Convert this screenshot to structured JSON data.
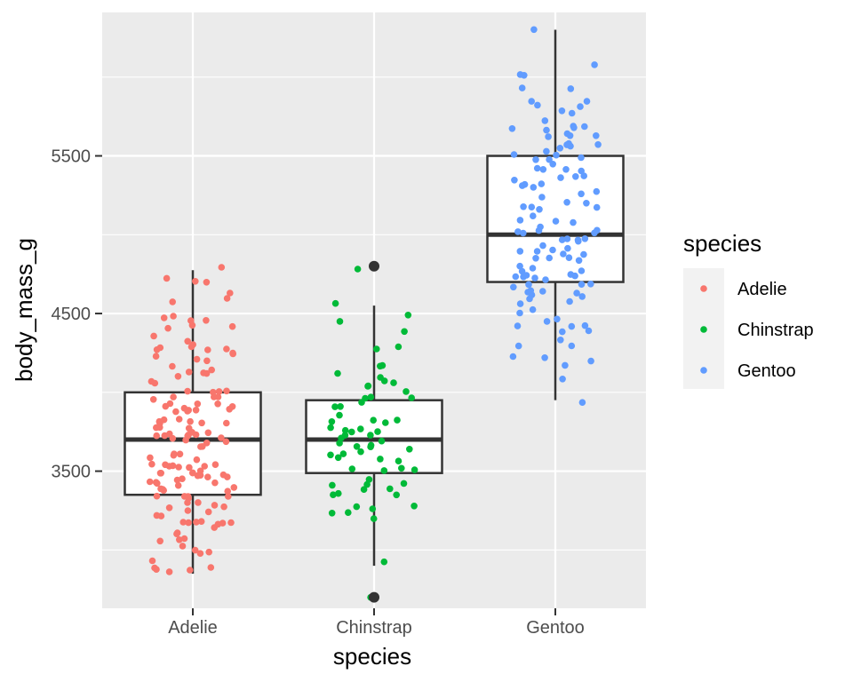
{
  "chart_data": {
    "type": "box",
    "title": "",
    "xlabel": "species",
    "ylabel": "body_mass_g",
    "categories": [
      "Adelie",
      "Chinstrap",
      "Gentoo"
    ],
    "y_ticks": [
      3500,
      4500,
      5500
    ],
    "y_tick_labels": [
      "3500",
      "4500",
      "5500"
    ],
    "ylim": [
      2700,
      6300
    ],
    "grid": true,
    "legend": {
      "title": "species",
      "position": "right",
      "entries": [
        "Adelie",
        "Chinstrap",
        "Gentoo"
      ]
    },
    "colors": {
      "Adelie": "#F8766D",
      "Chinstrap": "#00BA38",
      "Gentoo": "#619CFF"
    },
    "boxes": [
      {
        "category": "Adelie",
        "whisker_low": 2850,
        "q1": 3350,
        "median": 3700,
        "q3": 4000,
        "whisker_high": 4775,
        "outliers": []
      },
      {
        "category": "Chinstrap",
        "whisker_low": 2900,
        "q1": 3488,
        "median": 3700,
        "q3": 3950,
        "whisker_high": 4550,
        "outliers": [
          2700,
          4800
        ]
      },
      {
        "category": "Gentoo",
        "whisker_low": 3950,
        "q1": 4700,
        "median": 5000,
        "q3": 5500,
        "whisker_high": 6300,
        "outliers": []
      }
    ],
    "points": {
      "Adelie": [
        3750,
        3800,
        3250,
        3450,
        3650,
        3625,
        4675,
        3475,
        4250,
        3300,
        3700,
        3200,
        3800,
        4400,
        3700,
        3450,
        4500,
        3325,
        4200,
        3400,
        3600,
        3800,
        3950,
        3800,
        3800,
        3550,
        3200,
        3150,
        3950,
        3250,
        3900,
        3300,
        3900,
        3325,
        4150,
        3950,
        3550,
        3300,
        4650,
        3150,
        3900,
        3100,
        4400,
        3000,
        4600,
        3425,
        2975,
        3450,
        4150,
        3500,
        4300,
        3450,
        4050,
        2900,
        3700,
        3550,
        3800,
        2850,
        3750,
        3150,
        4400,
        3600,
        4050,
        2850,
        3950,
        3350,
        4100,
        3050,
        4450,
        3600,
        3900,
        3550,
        4150,
        3700,
        4250,
        3700,
        3900,
        3550,
        4000,
        3200,
        4700,
        3800,
        4200,
        3350,
        3550,
        3800,
        3500,
        3950,
        3600,
        3550,
        4300,
        3400,
        4450,
        3300,
        4300,
        3700,
        4350,
        2900,
        4100,
        3725,
        4725,
        3075,
        4250,
        2925,
        3550,
        3750,
        3900,
        3175,
        4775,
        3825,
        4600,
        3200,
        4275,
        3900,
        4075,
        2900,
        3775,
        3350,
        3325,
        3150,
        3500,
        3450,
        3875,
        3050,
        4000,
        3275,
        4300,
        3050,
        4000,
        3325,
        3500,
        3500,
        4475,
        3425,
        3900,
        3175,
        3975,
        3400,
        4250,
        3400,
        3475,
        3050,
        3725,
        3000,
        3650,
        4250,
        3475,
        3450,
        3750,
        3700,
        4000
      ],
      "Chinstrap": [
        3500,
        3900,
        3650,
        3525,
        3725,
        3950,
        3250,
        3750,
        4150,
        3700,
        3800,
        3775,
        3700,
        4050,
        3575,
        4050,
        3300,
        3700,
        3450,
        4400,
        3600,
        3400,
        2900,
        3800,
        3300,
        4150,
        3400,
        3800,
        3700,
        4550,
        3200,
        4300,
        3350,
        4100,
        3600,
        3900,
        3850,
        4800,
        2700,
        4500,
        3950,
        3650,
        3550,
        3500,
        3675,
        4450,
        3400,
        4300,
        3250,
        3675,
        3325,
        3950,
        3600,
        4050,
        3350,
        3450,
        3250,
        4050,
        3800,
        3525,
        3950,
        3650,
        3650,
        4000,
        3400,
        3775,
        4100,
        3775
      ],
      "Gentoo": [
        4500,
        5700,
        4450,
        5700,
        5400,
        4550,
        4800,
        5200,
        4400,
        5150,
        4650,
        5550,
        4650,
        5850,
        4200,
        5850,
        4150,
        6300,
        4800,
        5350,
        5700,
        5000,
        4400,
        5050,
        5000,
        5100,
        4100,
        5650,
        4600,
        5550,
        5250,
        4700,
        5050,
        6050,
        5150,
        5400,
        4950,
        5250,
        4350,
        5350,
        3950,
        5700,
        4300,
        4750,
        5550,
        4900,
        4200,
        5400,
        5100,
        5300,
        4850,
        5300,
        4400,
        5000,
        4900,
        5050,
        4300,
        5000,
        4450,
        5550,
        4200,
        5300,
        4400,
        5650,
        4700,
        5700,
        4650,
        5800,
        4700,
        5550,
        4750,
        5000,
        5100,
        5200,
        4700,
        5800,
        4600,
        6000,
        4750,
        5950,
        4625,
        5450,
        4725,
        5350,
        4750,
        5600,
        4600,
        5300,
        4875,
        5550,
        4950,
        5400,
        4750,
        5650,
        4850,
        5200,
        4925,
        4875,
        4625,
        5250,
        4850,
        5600,
        4975,
        5500,
        4725,
        5500,
        4700,
        5500,
        4575,
        5500,
        5000,
        5950,
        4650,
        5500,
        4375,
        5850,
        4875,
        6000,
        4925,
        4850,
        5750,
        5200,
        5400
      ]
    }
  }
}
